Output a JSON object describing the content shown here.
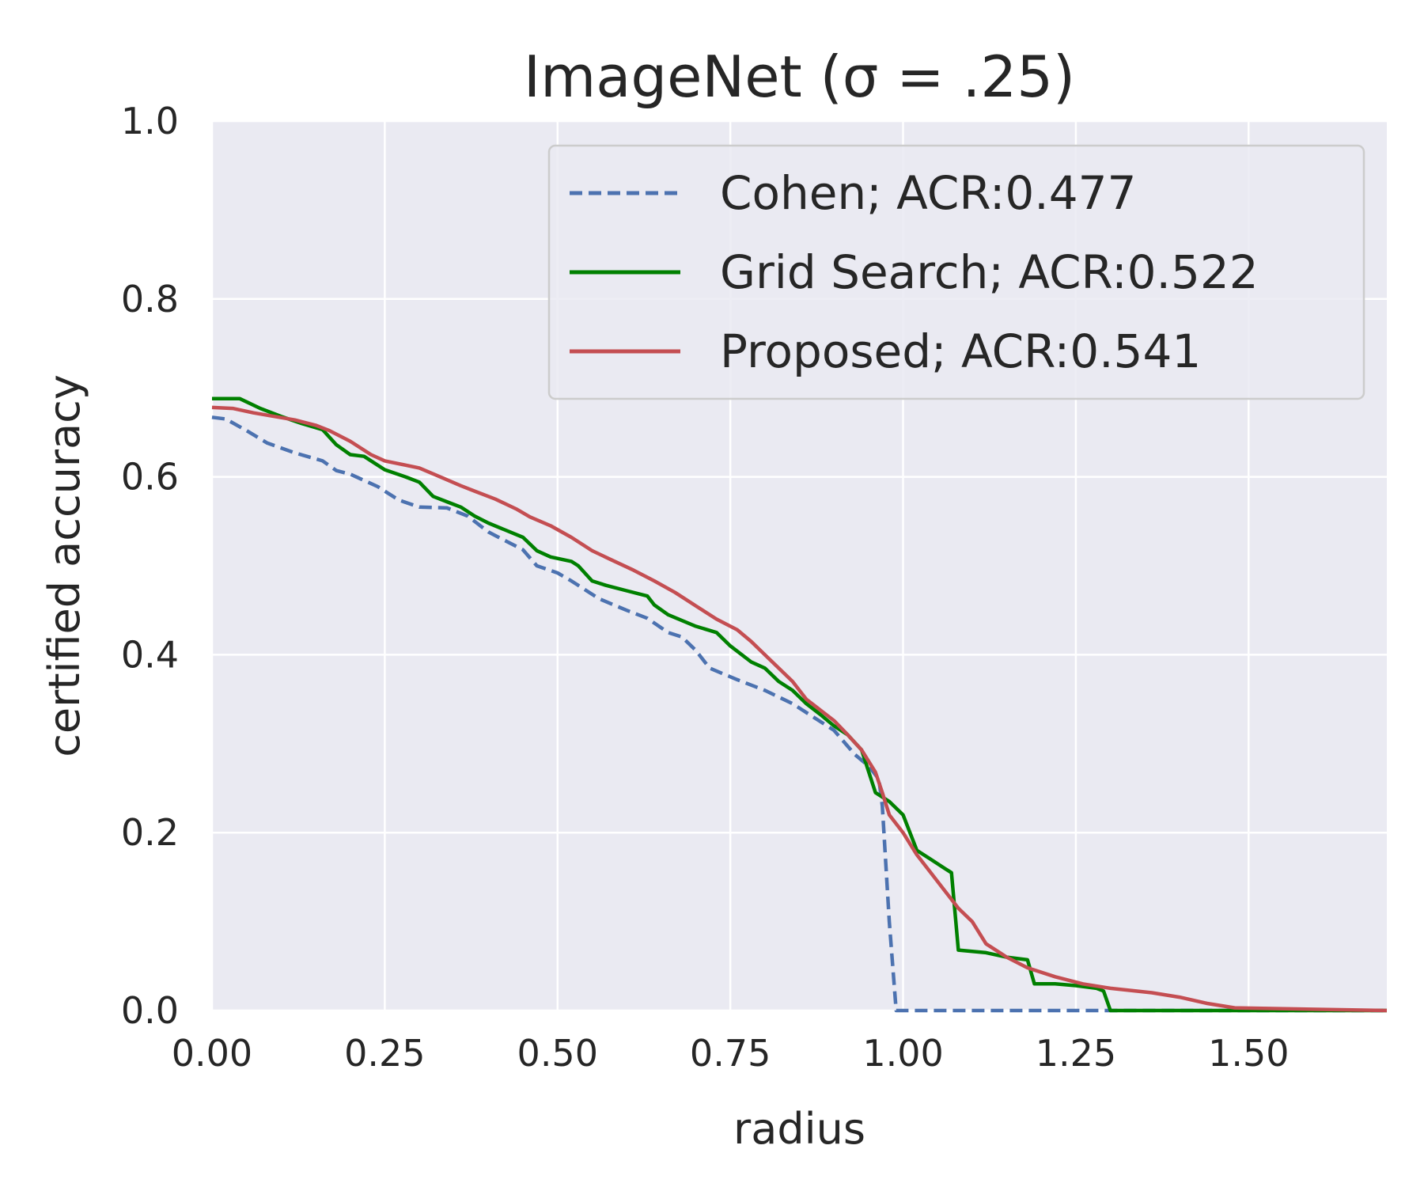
{
  "chart_data": {
    "type": "line",
    "title": "ImageNet (σ = .25)",
    "xlabel": "radius",
    "ylabel": "certified accuracy",
    "xlim": [
      0,
      1.7
    ],
    "ylim": [
      0,
      1.0
    ],
    "xticks": [
      "0.00",
      "0.25",
      "0.50",
      "0.75",
      "1.00",
      "1.25",
      "1.50"
    ],
    "xtick_values": [
      0,
      0.25,
      0.5,
      0.75,
      1.0,
      1.25,
      1.5
    ],
    "yticks": [
      "0.0",
      "0.2",
      "0.4",
      "0.6",
      "0.8",
      "1.0"
    ],
    "ytick_values": [
      0,
      0.2,
      0.4,
      0.6,
      0.8,
      1.0
    ],
    "grid": true,
    "legend_position": "top-right",
    "background_color": "#eaeaf2",
    "series": [
      {
        "name": "Cohen; ACR:0.477",
        "color": "#4c72b0",
        "style": "dashed",
        "x": [
          0,
          0.02,
          0.05,
          0.08,
          0.12,
          0.16,
          0.18,
          0.2,
          0.24,
          0.27,
          0.3,
          0.34,
          0.37,
          0.4,
          0.45,
          0.47,
          0.5,
          0.52,
          0.56,
          0.6,
          0.63,
          0.66,
          0.68,
          0.7,
          0.72,
          0.76,
          0.8,
          0.84,
          0.87,
          0.9,
          0.93,
          0.95,
          0.965,
          0.97,
          0.98,
          0.99,
          1.3,
          1.7
        ],
        "y": [
          0.667,
          0.665,
          0.652,
          0.638,
          0.627,
          0.618,
          0.607,
          0.603,
          0.589,
          0.574,
          0.566,
          0.565,
          0.556,
          0.538,
          0.518,
          0.5,
          0.492,
          0.483,
          0.463,
          0.45,
          0.441,
          0.425,
          0.42,
          0.405,
          0.385,
          0.372,
          0.36,
          0.345,
          0.33,
          0.315,
          0.288,
          0.275,
          0.26,
          0.23,
          0.1,
          0.0,
          0.0,
          0.0
        ]
      },
      {
        "name": "Grid Search; ACR:0.522",
        "color": "#008000",
        "style": "solid",
        "x": [
          0,
          0.04,
          0.07,
          0.1,
          0.13,
          0.16,
          0.18,
          0.2,
          0.22,
          0.25,
          0.28,
          0.3,
          0.32,
          0.34,
          0.36,
          0.38,
          0.4,
          0.45,
          0.47,
          0.49,
          0.52,
          0.53,
          0.55,
          0.57,
          0.6,
          0.63,
          0.64,
          0.66,
          0.7,
          0.73,
          0.75,
          0.78,
          0.8,
          0.82,
          0.84,
          0.86,
          0.88,
          0.9,
          0.92,
          0.94,
          0.96,
          0.98,
          1.0,
          1.02,
          1.04,
          1.06,
          1.07,
          1.08,
          1.12,
          1.15,
          1.18,
          1.19,
          1.22,
          1.25,
          1.28,
          1.29,
          1.3,
          1.7
        ],
        "y": [
          0.688,
          0.688,
          0.677,
          0.668,
          0.66,
          0.653,
          0.636,
          0.625,
          0.623,
          0.608,
          0.6,
          0.594,
          0.578,
          0.572,
          0.566,
          0.556,
          0.548,
          0.532,
          0.517,
          0.51,
          0.505,
          0.5,
          0.483,
          0.478,
          0.472,
          0.466,
          0.456,
          0.445,
          0.432,
          0.425,
          0.41,
          0.392,
          0.385,
          0.37,
          0.36,
          0.345,
          0.333,
          0.32,
          0.31,
          0.293,
          0.245,
          0.235,
          0.22,
          0.18,
          0.17,
          0.16,
          0.155,
          0.068,
          0.065,
          0.06,
          0.057,
          0.03,
          0.03,
          0.028,
          0.025,
          0.022,
          0.0,
          0.0
        ]
      },
      {
        "name": "Proposed; ACR:0.541",
        "color": "#c44e52",
        "style": "solid",
        "x": [
          0,
          0.03,
          0.06,
          0.09,
          0.12,
          0.15,
          0.17,
          0.2,
          0.23,
          0.25,
          0.3,
          0.33,
          0.36,
          0.38,
          0.41,
          0.44,
          0.46,
          0.49,
          0.52,
          0.55,
          0.58,
          0.61,
          0.64,
          0.67,
          0.7,
          0.73,
          0.76,
          0.78,
          0.8,
          0.82,
          0.84,
          0.86,
          0.88,
          0.9,
          0.92,
          0.94,
          0.96,
          0.97,
          0.98,
          1.0,
          1.02,
          1.04,
          1.06,
          1.08,
          1.1,
          1.12,
          1.15,
          1.18,
          1.22,
          1.26,
          1.3,
          1.36,
          1.4,
          1.44,
          1.48,
          1.7
        ],
        "y": [
          0.678,
          0.677,
          0.672,
          0.668,
          0.664,
          0.658,
          0.652,
          0.64,
          0.625,
          0.618,
          0.61,
          0.6,
          0.59,
          0.584,
          0.575,
          0.564,
          0.555,
          0.545,
          0.532,
          0.517,
          0.506,
          0.495,
          0.483,
          0.47,
          0.455,
          0.44,
          0.428,
          0.415,
          0.4,
          0.385,
          0.37,
          0.35,
          0.338,
          0.326,
          0.31,
          0.293,
          0.268,
          0.245,
          0.22,
          0.2,
          0.175,
          0.155,
          0.135,
          0.115,
          0.1,
          0.075,
          0.06,
          0.048,
          0.038,
          0.03,
          0.025,
          0.02,
          0.015,
          0.008,
          0.003,
          0.0
        ]
      }
    ]
  }
}
